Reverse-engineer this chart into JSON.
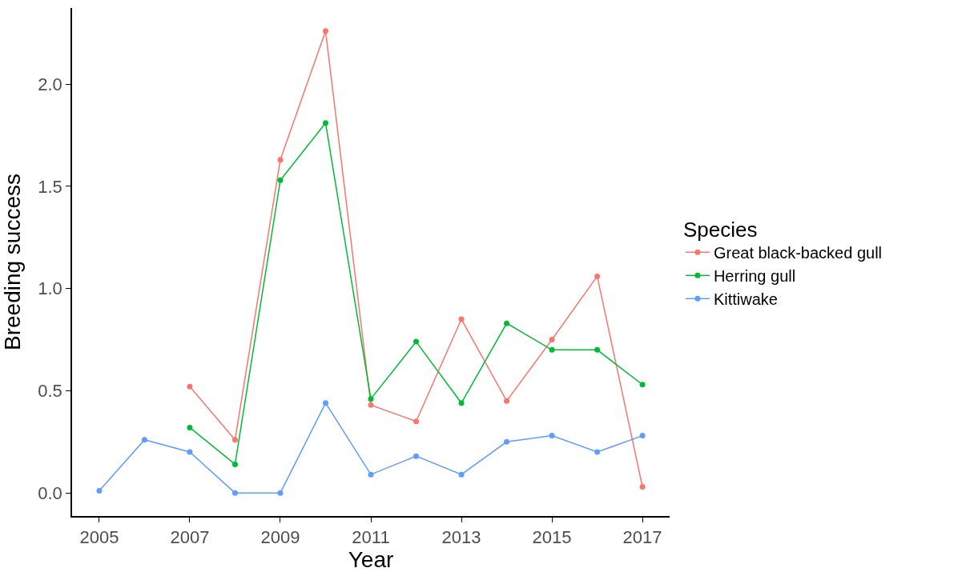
{
  "chart_data": {
    "type": "line",
    "xlabel": "Year",
    "ylabel": "Breeding success",
    "legend_title": "Species",
    "x": [
      2005,
      2006,
      2007,
      2008,
      2009,
      2010,
      2011,
      2012,
      2013,
      2014,
      2015,
      2016,
      2017
    ],
    "series": [
      {
        "name": "Great black-backed gull",
        "color": "#f8766d",
        "values": [
          null,
          null,
          0.52,
          0.26,
          1.63,
          2.26,
          0.43,
          0.35,
          0.85,
          0.45,
          0.75,
          1.06,
          0.03
        ]
      },
      {
        "name": "Herring gull",
        "color": "#00ba38",
        "values": [
          null,
          null,
          0.32,
          0.14,
          1.53,
          1.81,
          0.46,
          0.74,
          0.44,
          0.83,
          0.7,
          0.7,
          0.53
        ]
      },
      {
        "name": "Kittiwake",
        "color": "#619cff",
        "values": [
          0.01,
          0.26,
          0.2,
          0.0,
          0.0,
          0.44,
          0.09,
          0.18,
          0.09,
          0.25,
          0.28,
          0.2,
          0.28
        ]
      }
    ],
    "xlim": [
      2004.4,
      2017.6
    ],
    "xticks": [
      2005,
      2007,
      2009,
      2011,
      2013,
      2015,
      2017
    ],
    "ylim": [
      -0.113,
      2.373
    ],
    "yticks": [
      {
        "value": 0,
        "label": "0.0"
      },
      0.5,
      {
        "value": 1,
        "label": "1.0"
      },
      1.5,
      {
        "value": 2,
        "label": "2.0"
      }
    ],
    "legend": "right",
    "marker": "circle",
    "line_style": "solid"
  }
}
